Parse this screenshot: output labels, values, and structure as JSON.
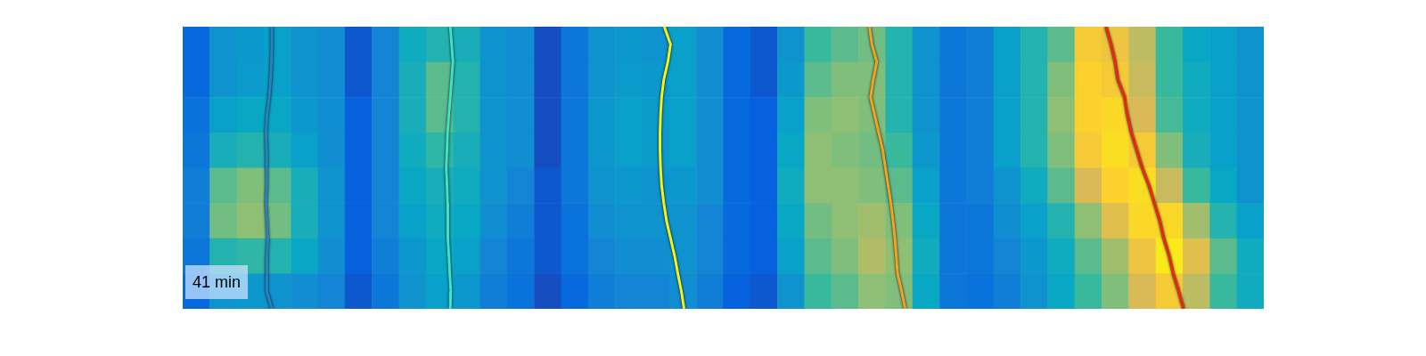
{
  "chart_data": {
    "type": "heatmap",
    "annotation": "41 min",
    "tick_labels": false,
    "grid": false,
    "xlim": [
      0,
      40
    ],
    "ylim": [
      0,
      8
    ],
    "cell_range": [
      0,
      1
    ],
    "cells": [
      [
        0.15,
        0.3,
        0.32,
        0.35,
        0.3,
        0.28,
        0.1,
        0.25,
        0.4,
        0.45,
        0.42,
        0.3,
        0.28,
        0.08,
        0.2,
        0.3,
        0.32,
        0.3,
        0.35,
        0.28,
        0.15,
        0.1,
        0.3,
        0.5,
        0.55,
        0.58,
        0.45,
        0.3,
        0.2,
        0.22,
        0.35,
        0.45,
        0.55,
        0.85,
        0.82,
        0.7,
        0.5,
        0.38,
        0.35,
        0.3
      ],
      [
        0.15,
        0.3,
        0.33,
        0.35,
        0.3,
        0.28,
        0.1,
        0.25,
        0.42,
        0.55,
        0.45,
        0.3,
        0.28,
        0.08,
        0.2,
        0.3,
        0.33,
        0.32,
        0.35,
        0.28,
        0.15,
        0.1,
        0.32,
        0.55,
        0.6,
        0.6,
        0.45,
        0.3,
        0.2,
        0.22,
        0.35,
        0.45,
        0.6,
        0.88,
        0.85,
        0.72,
        0.5,
        0.4,
        0.35,
        0.3
      ],
      [
        0.18,
        0.35,
        0.38,
        0.38,
        0.32,
        0.28,
        0.12,
        0.25,
        0.42,
        0.55,
        0.45,
        0.3,
        0.28,
        0.08,
        0.2,
        0.32,
        0.35,
        0.33,
        0.35,
        0.28,
        0.15,
        0.12,
        0.35,
        0.6,
        0.62,
        0.6,
        0.45,
        0.3,
        0.2,
        0.22,
        0.35,
        0.45,
        0.62,
        0.88,
        0.9,
        0.75,
        0.52,
        0.4,
        0.35,
        0.3
      ],
      [
        0.2,
        0.42,
        0.45,
        0.42,
        0.35,
        0.28,
        0.12,
        0.25,
        0.4,
        0.48,
        0.42,
        0.3,
        0.28,
        0.08,
        0.2,
        0.32,
        0.35,
        0.33,
        0.35,
        0.28,
        0.15,
        0.12,
        0.38,
        0.62,
        0.6,
        0.58,
        0.5,
        0.32,
        0.2,
        0.22,
        0.35,
        0.45,
        0.6,
        0.85,
        0.92,
        0.85,
        0.6,
        0.42,
        0.35,
        0.3
      ],
      [
        0.22,
        0.55,
        0.6,
        0.55,
        0.42,
        0.3,
        0.12,
        0.25,
        0.38,
        0.42,
        0.4,
        0.3,
        0.25,
        0.1,
        0.2,
        0.3,
        0.32,
        0.3,
        0.32,
        0.28,
        0.15,
        0.12,
        0.4,
        0.62,
        0.62,
        0.6,
        0.55,
        0.35,
        0.2,
        0.22,
        0.3,
        0.4,
        0.55,
        0.75,
        0.88,
        0.92,
        0.72,
        0.5,
        0.38,
        0.3
      ],
      [
        0.22,
        0.58,
        0.62,
        0.58,
        0.42,
        0.3,
        0.12,
        0.25,
        0.35,
        0.4,
        0.38,
        0.28,
        0.22,
        0.1,
        0.18,
        0.28,
        0.3,
        0.3,
        0.3,
        0.25,
        0.15,
        0.12,
        0.38,
        0.58,
        0.62,
        0.65,
        0.6,
        0.38,
        0.2,
        0.2,
        0.28,
        0.35,
        0.45,
        0.62,
        0.78,
        0.9,
        0.9,
        0.65,
        0.45,
        0.35
      ],
      [
        0.2,
        0.45,
        0.48,
        0.45,
        0.38,
        0.28,
        0.12,
        0.22,
        0.32,
        0.38,
        0.35,
        0.25,
        0.2,
        0.1,
        0.18,
        0.25,
        0.28,
        0.28,
        0.3,
        0.25,
        0.15,
        0.12,
        0.35,
        0.55,
        0.6,
        0.68,
        0.62,
        0.4,
        0.2,
        0.2,
        0.25,
        0.32,
        0.4,
        0.55,
        0.65,
        0.82,
        0.95,
        0.78,
        0.55,
        0.4
      ],
      [
        0.15,
        0.3,
        0.32,
        0.3,
        0.28,
        0.25,
        0.1,
        0.2,
        0.3,
        0.35,
        0.32,
        0.22,
        0.18,
        0.08,
        0.15,
        0.22,
        0.25,
        0.25,
        0.28,
        0.22,
        0.12,
        0.1,
        0.3,
        0.5,
        0.55,
        0.62,
        0.6,
        0.38,
        0.2,
        0.18,
        0.22,
        0.3,
        0.38,
        0.5,
        0.6,
        0.75,
        0.85,
        0.7,
        0.5,
        0.4
      ]
    ],
    "series": [
      {
        "color": "#2f7fc0",
        "line_style": "solid",
        "x": [
          3.3,
          3.3,
          3.28,
          3.25,
          3.2,
          3.12,
          3.08,
          3.1,
          3.12,
          3.1,
          3.08,
          3.12,
          3.15,
          3.12,
          3.1,
          3.12,
          3.3
        ],
        "y": [
          0,
          0.5,
          1,
          1.5,
          2,
          2.5,
          3,
          3.5,
          4,
          4.5,
          5,
          5.5,
          6,
          6.5,
          7,
          7.5,
          8
        ]
      },
      {
        "color": "#3fe3c8",
        "line_style": "solid",
        "x": [
          9.9,
          9.95,
          10.0,
          9.95,
          9.9,
          9.85,
          9.8,
          9.78,
          9.75,
          9.78,
          9.8,
          9.82,
          9.8,
          9.85,
          9.88,
          9.92,
          9.9
        ],
        "y": [
          0,
          0.5,
          1,
          1.5,
          2,
          2.5,
          3,
          3.5,
          4,
          4.5,
          5,
          5.5,
          6,
          6.5,
          7,
          7.5,
          8
        ]
      },
      {
        "color": "#f4f21c",
        "line_style": "solid",
        "x": [
          17.82,
          18.05,
          17.95,
          17.8,
          17.72,
          17.68,
          17.66,
          17.66,
          17.68,
          17.72,
          17.8,
          17.9,
          18.05,
          18.2,
          18.32,
          18.45,
          18.55
        ],
        "y": [
          0,
          0.5,
          1,
          1.5,
          2,
          2.5,
          3,
          3.5,
          4,
          4.5,
          5,
          5.5,
          6,
          6.5,
          7,
          7.5,
          8
        ]
      },
      {
        "color": "#f7a21e",
        "line_style": "solid",
        "x": [
          25.41,
          25.5,
          25.68,
          25.55,
          25.45,
          25.6,
          25.75,
          25.9,
          26.0,
          26.1,
          26.2,
          26.28,
          26.35,
          26.4,
          26.45,
          26.6,
          26.73
        ],
        "y": [
          0,
          0.5,
          1,
          1.5,
          2,
          2.5,
          3,
          3.5,
          4,
          4.5,
          5,
          5.5,
          6,
          6.5,
          7,
          7.5,
          8
        ]
      },
      {
        "color": "#e8261a",
        "line_style": "solid",
        "x": [
          34.16,
          34.35,
          34.5,
          34.6,
          34.85,
          34.95,
          35.1,
          35.3,
          35.5,
          35.75,
          35.95,
          36.15,
          36.3,
          36.5,
          36.65,
          36.85,
          37.03
        ],
        "y": [
          0,
          0.5,
          1,
          1.5,
          2,
          2.5,
          3,
          3.5,
          4,
          4.5,
          5,
          5.5,
          6,
          6.5,
          7,
          7.5,
          8
        ]
      }
    ]
  }
}
